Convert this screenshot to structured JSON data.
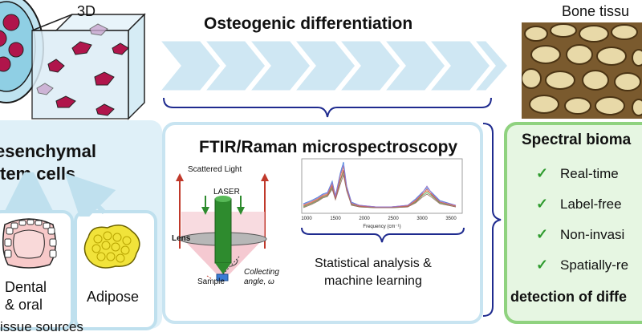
{
  "header": {
    "label_3d": "3D",
    "osteogenic": "Osteogenic differentiation",
    "bone": "Bone tissu"
  },
  "cells": {
    "line1": "esenchymal",
    "line2": "tem cells"
  },
  "sources": {
    "dental_line1": "Dental",
    "dental_line2": "& oral",
    "adipose": "Adipose",
    "caption": "issue sources"
  },
  "ftir": {
    "title": "FTIR/Raman microspectroscopy",
    "scattered": "Scattered Light",
    "laser": "LASER",
    "lens": "Lens",
    "sample": "Sample",
    "collecting1": "Collecting",
    "collecting2": "angle, ω",
    "stats1": "Statistical analysis &",
    "stats2": "machine learning"
  },
  "spectrum": {
    "xlabel": "Frequency (cm⁻¹)",
    "ticks": [
      "1000",
      "1500",
      "2000",
      "2500",
      "3000",
      "3500"
    ]
  },
  "biomarkers": {
    "title": "Spectral bioma",
    "items": [
      "Real-time",
      "Label-free",
      "Non-invasi",
      "Spatially-re"
    ],
    "footer": "detection of diffe"
  },
  "colors": {
    "arrow": "#cfe7f3",
    "panel_border": "#c8e4f1",
    "green_border": "#8fd27f",
    "check": "#2e9b2e",
    "cell": "#b0154b"
  }
}
